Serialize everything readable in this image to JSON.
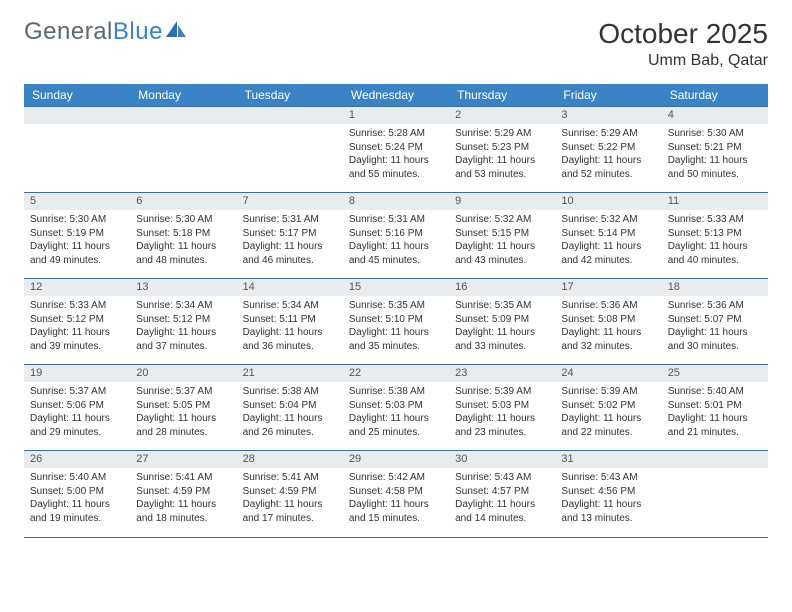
{
  "brand": {
    "part1": "General",
    "part2": "Blue"
  },
  "title": "October 2025",
  "location": "Umm Bab, Qatar",
  "colors": {
    "header_bg": "#3a83c4",
    "header_text": "#ffffff",
    "daynum_bg": "#e9ecef",
    "rule": "#3a6ea0",
    "body_text": "#333333",
    "logo_gray": "#5c6770",
    "logo_blue": "#3a83c4"
  },
  "typography": {
    "title_fontsize": 28,
    "location_fontsize": 16,
    "header_fontsize": 12,
    "daynum_fontsize": 11,
    "body_fontsize": 10
  },
  "weekdays": [
    "Sunday",
    "Monday",
    "Tuesday",
    "Wednesday",
    "Thursday",
    "Friday",
    "Saturday"
  ],
  "weeks": [
    [
      {
        "n": "",
        "sr": "",
        "ss": "",
        "dl": ""
      },
      {
        "n": "",
        "sr": "",
        "ss": "",
        "dl": ""
      },
      {
        "n": "",
        "sr": "",
        "ss": "",
        "dl": ""
      },
      {
        "n": "1",
        "sr": "Sunrise: 5:28 AM",
        "ss": "Sunset: 5:24 PM",
        "dl": "Daylight: 11 hours and 55 minutes."
      },
      {
        "n": "2",
        "sr": "Sunrise: 5:29 AM",
        "ss": "Sunset: 5:23 PM",
        "dl": "Daylight: 11 hours and 53 minutes."
      },
      {
        "n": "3",
        "sr": "Sunrise: 5:29 AM",
        "ss": "Sunset: 5:22 PM",
        "dl": "Daylight: 11 hours and 52 minutes."
      },
      {
        "n": "4",
        "sr": "Sunrise: 5:30 AM",
        "ss": "Sunset: 5:21 PM",
        "dl": "Daylight: 11 hours and 50 minutes."
      }
    ],
    [
      {
        "n": "5",
        "sr": "Sunrise: 5:30 AM",
        "ss": "Sunset: 5:19 PM",
        "dl": "Daylight: 11 hours and 49 minutes."
      },
      {
        "n": "6",
        "sr": "Sunrise: 5:30 AM",
        "ss": "Sunset: 5:18 PM",
        "dl": "Daylight: 11 hours and 48 minutes."
      },
      {
        "n": "7",
        "sr": "Sunrise: 5:31 AM",
        "ss": "Sunset: 5:17 PM",
        "dl": "Daylight: 11 hours and 46 minutes."
      },
      {
        "n": "8",
        "sr": "Sunrise: 5:31 AM",
        "ss": "Sunset: 5:16 PM",
        "dl": "Daylight: 11 hours and 45 minutes."
      },
      {
        "n": "9",
        "sr": "Sunrise: 5:32 AM",
        "ss": "Sunset: 5:15 PM",
        "dl": "Daylight: 11 hours and 43 minutes."
      },
      {
        "n": "10",
        "sr": "Sunrise: 5:32 AM",
        "ss": "Sunset: 5:14 PM",
        "dl": "Daylight: 11 hours and 42 minutes."
      },
      {
        "n": "11",
        "sr": "Sunrise: 5:33 AM",
        "ss": "Sunset: 5:13 PM",
        "dl": "Daylight: 11 hours and 40 minutes."
      }
    ],
    [
      {
        "n": "12",
        "sr": "Sunrise: 5:33 AM",
        "ss": "Sunset: 5:12 PM",
        "dl": "Daylight: 11 hours and 39 minutes."
      },
      {
        "n": "13",
        "sr": "Sunrise: 5:34 AM",
        "ss": "Sunset: 5:12 PM",
        "dl": "Daylight: 11 hours and 37 minutes."
      },
      {
        "n": "14",
        "sr": "Sunrise: 5:34 AM",
        "ss": "Sunset: 5:11 PM",
        "dl": "Daylight: 11 hours and 36 minutes."
      },
      {
        "n": "15",
        "sr": "Sunrise: 5:35 AM",
        "ss": "Sunset: 5:10 PM",
        "dl": "Daylight: 11 hours and 35 minutes."
      },
      {
        "n": "16",
        "sr": "Sunrise: 5:35 AM",
        "ss": "Sunset: 5:09 PM",
        "dl": "Daylight: 11 hours and 33 minutes."
      },
      {
        "n": "17",
        "sr": "Sunrise: 5:36 AM",
        "ss": "Sunset: 5:08 PM",
        "dl": "Daylight: 11 hours and 32 minutes."
      },
      {
        "n": "18",
        "sr": "Sunrise: 5:36 AM",
        "ss": "Sunset: 5:07 PM",
        "dl": "Daylight: 11 hours and 30 minutes."
      }
    ],
    [
      {
        "n": "19",
        "sr": "Sunrise: 5:37 AM",
        "ss": "Sunset: 5:06 PM",
        "dl": "Daylight: 11 hours and 29 minutes."
      },
      {
        "n": "20",
        "sr": "Sunrise: 5:37 AM",
        "ss": "Sunset: 5:05 PM",
        "dl": "Daylight: 11 hours and 28 minutes."
      },
      {
        "n": "21",
        "sr": "Sunrise: 5:38 AM",
        "ss": "Sunset: 5:04 PM",
        "dl": "Daylight: 11 hours and 26 minutes."
      },
      {
        "n": "22",
        "sr": "Sunrise: 5:38 AM",
        "ss": "Sunset: 5:03 PM",
        "dl": "Daylight: 11 hours and 25 minutes."
      },
      {
        "n": "23",
        "sr": "Sunrise: 5:39 AM",
        "ss": "Sunset: 5:03 PM",
        "dl": "Daylight: 11 hours and 23 minutes."
      },
      {
        "n": "24",
        "sr": "Sunrise: 5:39 AM",
        "ss": "Sunset: 5:02 PM",
        "dl": "Daylight: 11 hours and 22 minutes."
      },
      {
        "n": "25",
        "sr": "Sunrise: 5:40 AM",
        "ss": "Sunset: 5:01 PM",
        "dl": "Daylight: 11 hours and 21 minutes."
      }
    ],
    [
      {
        "n": "26",
        "sr": "Sunrise: 5:40 AM",
        "ss": "Sunset: 5:00 PM",
        "dl": "Daylight: 11 hours and 19 minutes."
      },
      {
        "n": "27",
        "sr": "Sunrise: 5:41 AM",
        "ss": "Sunset: 4:59 PM",
        "dl": "Daylight: 11 hours and 18 minutes."
      },
      {
        "n": "28",
        "sr": "Sunrise: 5:41 AM",
        "ss": "Sunset: 4:59 PM",
        "dl": "Daylight: 11 hours and 17 minutes."
      },
      {
        "n": "29",
        "sr": "Sunrise: 5:42 AM",
        "ss": "Sunset: 4:58 PM",
        "dl": "Daylight: 11 hours and 15 minutes."
      },
      {
        "n": "30",
        "sr": "Sunrise: 5:43 AM",
        "ss": "Sunset: 4:57 PM",
        "dl": "Daylight: 11 hours and 14 minutes."
      },
      {
        "n": "31",
        "sr": "Sunrise: 5:43 AM",
        "ss": "Sunset: 4:56 PM",
        "dl": "Daylight: 11 hours and 13 minutes."
      },
      {
        "n": "",
        "sr": "",
        "ss": "",
        "dl": ""
      }
    ]
  ]
}
